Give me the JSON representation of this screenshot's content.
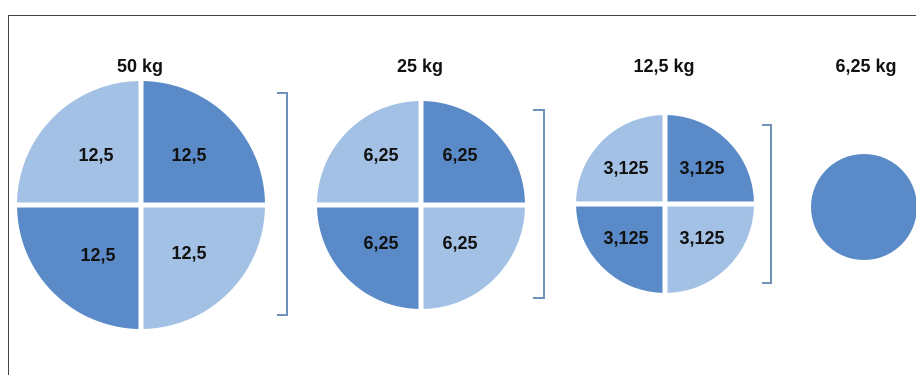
{
  "colors": {
    "light": "#a3c1e4",
    "dark": "#5a8bc8",
    "bracket": "#6f93b8"
  },
  "stages": [
    {
      "title": "50 kg",
      "pieces": [
        "12,5",
        "12,5",
        "12,5",
        "12,5"
      ]
    },
    {
      "title": "25 kg",
      "pieces": [
        "6,25",
        "6,25",
        "6,25",
        "6,25"
      ]
    },
    {
      "title": "12,5 kg",
      "pieces": [
        "3,125",
        "3,125",
        "3,125",
        "3,125"
      ]
    },
    {
      "title": "6,25 kg",
      "pieces": []
    }
  ]
}
